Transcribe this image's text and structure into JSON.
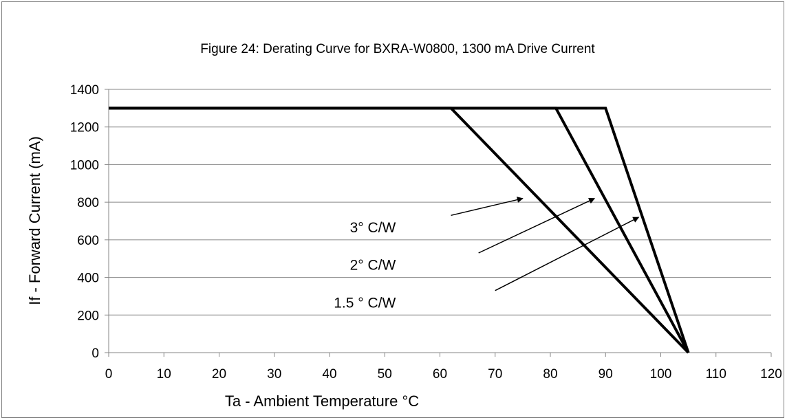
{
  "chart_data": {
    "type": "line",
    "title": "Figure 24:  Derating Curve for BXRA-W0800, 1300 mA Drive Current",
    "xlabel": "Ta - Ambient Temperature °C",
    "ylabel": "If - Forward Current (mA)",
    "xlim": [
      0,
      120
    ],
    "ylim": [
      0,
      1400
    ],
    "xticks": [
      0,
      10,
      20,
      30,
      40,
      50,
      60,
      70,
      80,
      90,
      100,
      110,
      120
    ],
    "yticks": [
      0,
      200,
      400,
      600,
      800,
      1000,
      1200,
      1400
    ],
    "grid": "horizontal",
    "series": [
      {
        "x": [
          0,
          62,
          105
        ],
        "y": [
          1300,
          1300,
          0
        ]
      },
      {
        "x": [
          0,
          81,
          105
        ],
        "y": [
          1300,
          1300,
          0
        ]
      },
      {
        "x": [
          0,
          90,
          105
        ],
        "y": [
          1300,
          1300,
          0
        ]
      }
    ],
    "annotations": [
      {
        "text": "3° C/W",
        "label_at": [
          52,
          640
        ],
        "arrow_from": [
          62,
          730
        ],
        "arrow_to": [
          75,
          820
        ]
      },
      {
        "text": "2° C/W",
        "label_at": [
          52,
          440
        ],
        "arrow_from": [
          67,
          530
        ],
        "arrow_to": [
          88,
          820
        ]
      },
      {
        "text": "1.5 ° C/W",
        "label_at": [
          52,
          240
        ],
        "arrow_from": [
          70,
          330
        ],
        "arrow_to": [
          96,
          720
        ]
      }
    ],
    "colors": {
      "line": "#000000",
      "grid": "#868686",
      "axis": "#868686"
    }
  }
}
